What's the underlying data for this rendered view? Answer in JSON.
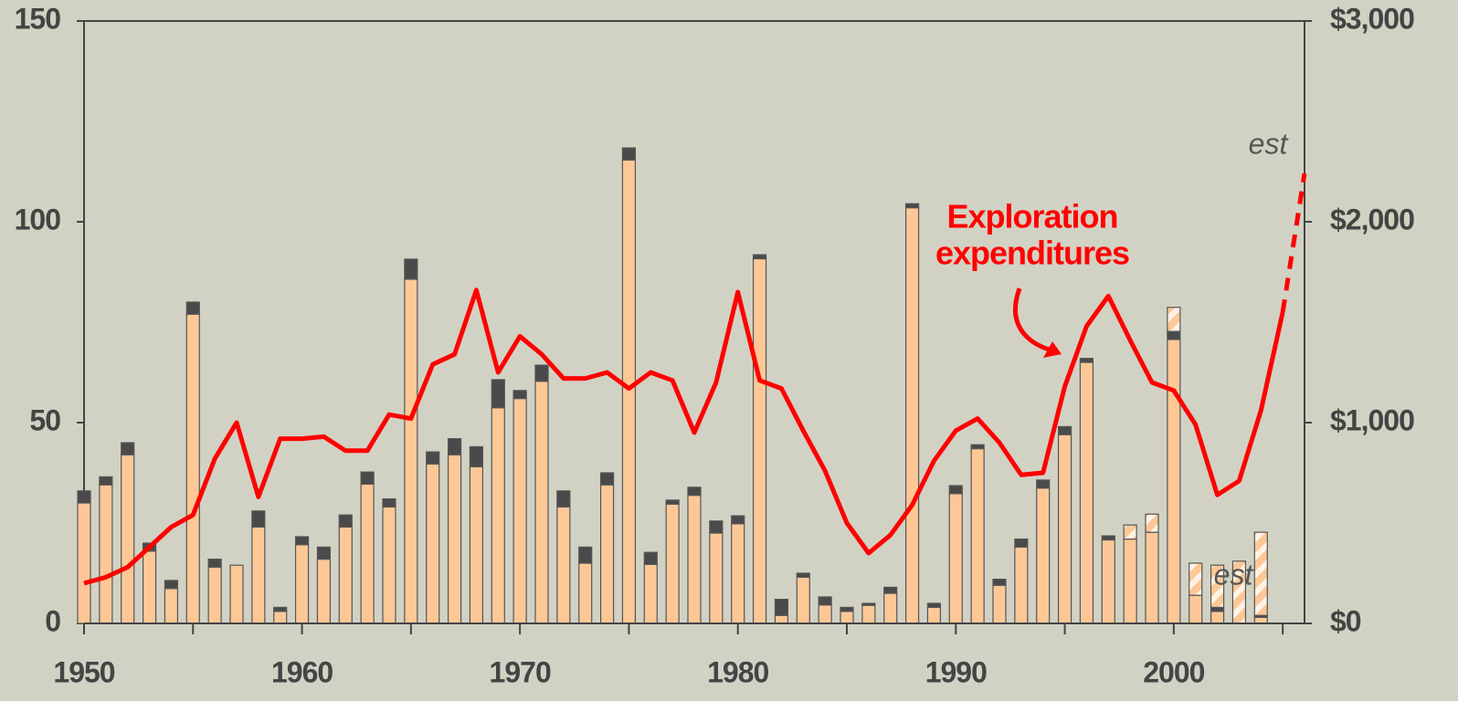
{
  "chart_data": {
    "type": "bar",
    "x": [
      1950,
      1951,
      1952,
      1953,
      1954,
      1955,
      1956,
      1957,
      1958,
      1959,
      1960,
      1961,
      1962,
      1963,
      1964,
      1965,
      1966,
      1967,
      1968,
      1969,
      1970,
      1971,
      1972,
      1973,
      1974,
      1975,
      1976,
      1977,
      1978,
      1979,
      1980,
      1981,
      1982,
      1983,
      1984,
      1985,
      1986,
      1987,
      1988,
      1989,
      1990,
      1991,
      1992,
      1993,
      1994,
      1995,
      1996,
      1997,
      1998,
      1999,
      2000,
      2001,
      2002,
      2003,
      2004,
      2005,
      2006
    ],
    "series": [
      {
        "color": "#fdc896",
        "values": [
          30,
          34.5,
          42,
          18,
          8.7,
          77,
          14,
          14.5,
          24,
          3,
          19.6,
          16,
          24,
          34.7,
          29,
          85.7,
          39.7,
          42,
          39,
          53.7,
          56,
          60.3,
          29,
          15,
          34.5,
          115.4,
          14.7,
          29.7,
          31.9,
          22.5,
          24.8,
          90.8,
          2,
          11.5,
          4.6,
          3,
          4.5,
          7.5,
          103.5,
          4,
          32.3,
          43.5,
          9.5,
          19,
          33.7,
          47,
          65,
          20.8,
          21,
          22.7,
          70.7,
          7,
          3,
          0,
          1.5,
          null,
          null
        ]
      },
      {
        "color": "#4a4a4a",
        "values": [
          3,
          2,
          3,
          2,
          2,
          3,
          2,
          0,
          4,
          1,
          2,
          3,
          3,
          3,
          2,
          5,
          3,
          4,
          5,
          7,
          2,
          4,
          4,
          4,
          3,
          3,
          3,
          1,
          2,
          3,
          2,
          1,
          4,
          1,
          2,
          1,
          0.5,
          1.5,
          1,
          1,
          2,
          1,
          1.5,
          2,
          2,
          2,
          1,
          1,
          0,
          0,
          2,
          0,
          1,
          0,
          0.5,
          null,
          null
        ]
      },
      {
        "color": "#fdc896",
        "hatched": true,
        "values": [
          null,
          null,
          null,
          null,
          null,
          null,
          null,
          null,
          null,
          null,
          null,
          null,
          null,
          null,
          null,
          null,
          null,
          null,
          null,
          null,
          null,
          null,
          null,
          null,
          null,
          null,
          null,
          null,
          null,
          null,
          null,
          null,
          null,
          null,
          null,
          null,
          null,
          null,
          null,
          null,
          null,
          null,
          null,
          null,
          null,
          null,
          null,
          null,
          3.5,
          4.5,
          6,
          8,
          10.5,
          15.5,
          20.7,
          null,
          null
        ]
      },
      {
        "type": "line",
        "axis": "y2",
        "color": "#ff0000",
        "values": [
          200,
          230,
          280,
          380,
          480,
          540,
          820,
          1000,
          630,
          920,
          920,
          930,
          860,
          860,
          1040,
          1020,
          1290,
          1340,
          1660,
          1250,
          1430,
          1340,
          1220,
          1220,
          1250,
          1170,
          1250,
          1210,
          950,
          1200,
          1650,
          1210,
          1170,
          960,
          760,
          500,
          350,
          440,
          590,
          810,
          960,
          1020,
          900,
          740,
          750,
          1180,
          1480,
          1630,
          1410,
          1200,
          1160,
          990,
          640,
          710,
          1060,
          1550,
          null
        ]
      },
      {
        "type": "line",
        "axis": "y2",
        "color": "#ff0000",
        "dashed": true,
        "values": [
          null,
          null,
          null,
          null,
          null,
          null,
          null,
          null,
          null,
          null,
          null,
          null,
          null,
          null,
          null,
          null,
          null,
          null,
          null,
          null,
          null,
          null,
          null,
          null,
          null,
          null,
          null,
          null,
          null,
          null,
          null,
          null,
          null,
          null,
          null,
          null,
          null,
          null,
          null,
          null,
          null,
          null,
          null,
          null,
          null,
          null,
          null,
          null,
          null,
          null,
          null,
          null,
          null,
          null,
          null,
          1550,
          2240
        ]
      }
    ],
    "xlim": [
      1950,
      2006
    ],
    "xticks": [
      1950,
      1960,
      1970,
      1980,
      1990,
      2000
    ],
    "xminor_ticks": [
      1955,
      1965,
      1975,
      1985,
      1995,
      2005
    ],
    "ylim": [
      0,
      150
    ],
    "yticks": [
      0,
      50,
      100,
      150
    ],
    "y2lim": [
      0,
      3000
    ],
    "y2ticks": [
      {
        "value": 0,
        "label": "$0"
      },
      {
        "value": 1000,
        "label": "$1,000"
      },
      {
        "value": 2000,
        "label": "$2,000"
      },
      {
        "value": 3000,
        "label": "$3,000"
      }
    ],
    "annotations": [
      {
        "lines": [
          "Exploration",
          "expenditures"
        ]
      },
      {
        "text": "est"
      },
      {
        "text": "est"
      }
    ]
  }
}
